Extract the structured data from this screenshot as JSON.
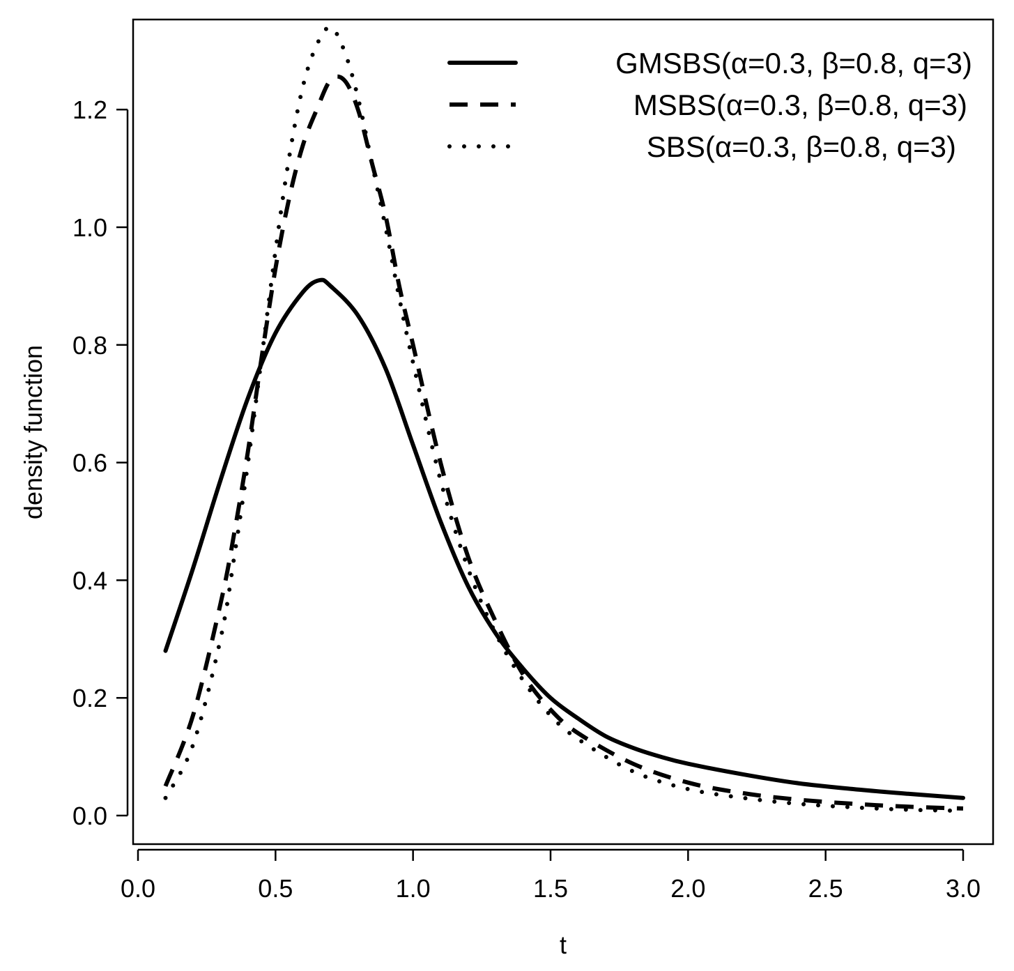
{
  "chart_data": {
    "type": "line",
    "title": "",
    "xlabel": "t",
    "ylabel": "density function",
    "xlim": [
      0.0,
      3.0
    ],
    "ylim": [
      0.0,
      1.35
    ],
    "x_ticks": [
      "0.0",
      "0.5",
      "1.0",
      "1.5",
      "2.0",
      "2.5",
      "3.0"
    ],
    "y_ticks": [
      "0.0",
      "0.2",
      "0.4",
      "0.6",
      "0.8",
      "1.0",
      "1.2"
    ],
    "grid": false,
    "legend_position": "top-right",
    "series": [
      {
        "name": "GMSBS(α=0.3, β=0.8, q=3)",
        "style": "solid",
        "x": [
          0.1,
          0.2,
          0.3,
          0.4,
          0.5,
          0.6,
          0.66,
          0.7,
          0.8,
          0.9,
          1.0,
          1.1,
          1.2,
          1.3,
          1.4,
          1.5,
          1.6,
          1.7,
          1.8,
          1.9,
          2.0,
          2.2,
          2.4,
          2.6,
          2.8,
          3.0
        ],
        "y": [
          0.28,
          0.42,
          0.57,
          0.71,
          0.82,
          0.89,
          0.91,
          0.9,
          0.85,
          0.76,
          0.63,
          0.5,
          0.39,
          0.31,
          0.25,
          0.2,
          0.165,
          0.135,
          0.115,
          0.1,
          0.088,
          0.07,
          0.055,
          0.045,
          0.037,
          0.03
        ]
      },
      {
        "name": "MSBS(α=0.3, β=0.8, q=3)",
        "style": "dashed",
        "x": [
          0.1,
          0.2,
          0.3,
          0.35,
          0.4,
          0.45,
          0.5,
          0.55,
          0.6,
          0.65,
          0.7,
          0.75,
          0.8,
          0.85,
          0.9,
          0.95,
          1.0,
          1.1,
          1.2,
          1.3,
          1.4,
          1.5,
          1.6,
          1.8,
          2.0,
          2.2,
          2.4,
          2.6,
          2.8,
          3.0
        ],
        "y": [
          0.05,
          0.17,
          0.36,
          0.48,
          0.62,
          0.78,
          0.93,
          1.05,
          1.14,
          1.2,
          1.25,
          1.25,
          1.2,
          1.11,
          1.02,
          0.9,
          0.8,
          0.6,
          0.44,
          0.33,
          0.24,
          0.18,
          0.14,
          0.088,
          0.056,
          0.038,
          0.027,
          0.02,
          0.015,
          0.012
        ]
      },
      {
        "name": "SBS(α=0.3, β=0.8, q=3)",
        "style": "dotted",
        "x": [
          0.1,
          0.2,
          0.3,
          0.35,
          0.4,
          0.45,
          0.5,
          0.55,
          0.6,
          0.65,
          0.7,
          0.75,
          0.8,
          0.85,
          0.9,
          0.95,
          1.0,
          1.1,
          1.2,
          1.3,
          1.4,
          1.5,
          1.6,
          1.8,
          2.0,
          2.2,
          2.4,
          2.6,
          2.8,
          3.0
        ],
        "y": [
          0.03,
          0.12,
          0.3,
          0.44,
          0.6,
          0.78,
          0.96,
          1.12,
          1.24,
          1.31,
          1.34,
          1.3,
          1.22,
          1.11,
          1.0,
          0.88,
          0.77,
          0.57,
          0.42,
          0.31,
          0.23,
          0.17,
          0.13,
          0.075,
          0.045,
          0.03,
          0.02,
          0.014,
          0.01,
          0.008
        ]
      }
    ]
  }
}
